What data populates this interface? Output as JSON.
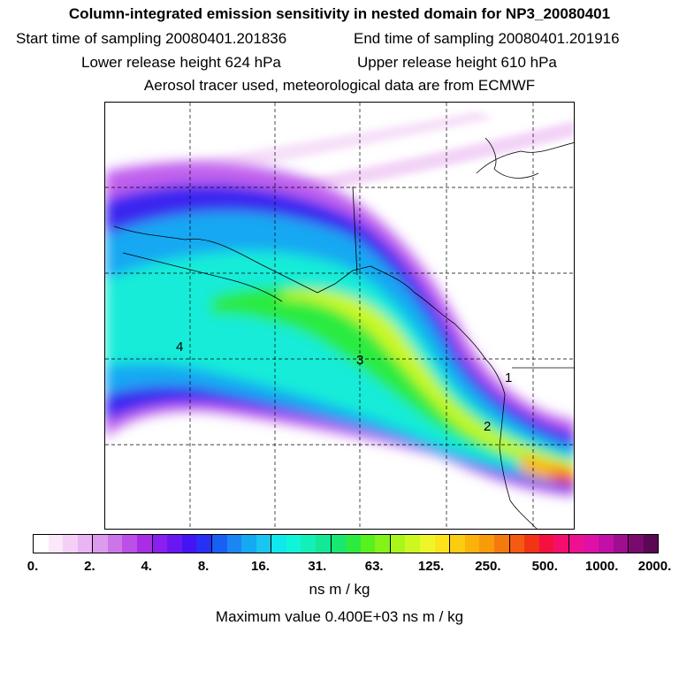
{
  "header": {
    "title": "Column-integrated emission sensitivity in nested domain for NP3_20080401",
    "start_label": "Start time of sampling 20080401.201836",
    "end_label": "End time of sampling 20080401.201916",
    "lower_label": "Lower release height  624 hPa",
    "upper_label": "Upper release height  610 hPa",
    "note": "Aerosol tracer used, meteorological data are from ECMWF"
  },
  "map": {
    "labels": [
      "4",
      "3",
      "2",
      "1"
    ]
  },
  "colorbar": {
    "ticks": [
      "0.",
      "2.",
      "4.",
      "8.",
      "16.",
      "31.",
      "63.",
      "125.",
      "250.",
      "500.",
      "1000.",
      "2000."
    ],
    "colors": [
      "#ffffff",
      "#fbe8fb",
      "#f4d0f6",
      "#eab5f2",
      "#dd9bee",
      "#cc75ea",
      "#bb4fe8",
      "#a92de6",
      "#8a1ff0",
      "#6a18f3",
      "#4414f4",
      "#2830f6",
      "#1860f4",
      "#1a86f3",
      "#14a9f1",
      "#1ac5ef",
      "#11e8ec",
      "#10f5da",
      "#12f0b8",
      "#14e896",
      "#18e772",
      "#2ceb40",
      "#58f01e",
      "#84f31a",
      "#aaf51a",
      "#ccf820",
      "#eef52a",
      "#fbe51a",
      "#fccc10",
      "#fbb20a",
      "#f99a0a",
      "#f57a0e",
      "#f55a12",
      "#f33316",
      "#f51040",
      "#f50e6e",
      "#ee1090",
      "#de10a8",
      "#c010a8",
      "#a00e90",
      "#7a0a6e",
      "#5a0852"
    ],
    "units": "ns m / kg",
    "max_text": "Maximum value  0.400E+03 ns m / kg"
  }
}
